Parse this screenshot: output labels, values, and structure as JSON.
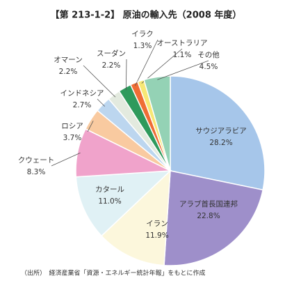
{
  "chart_data": {
    "type": "pie",
    "title": "【第 213-1-2】 原油の輸入先（2008 年度）",
    "categories": [
      "サウジアラビア",
      "アラブ首長国連邦",
      "イラン",
      "カタール",
      "クウェート",
      "ロシア",
      "インドネシア",
      "オマーン",
      "スーダン",
      "イラク",
      "オーストラリア",
      "その他"
    ],
    "values": [
      28.2,
      22.8,
      11.9,
      11.0,
      8.3,
      3.7,
      2.7,
      2.2,
      2.2,
      1.3,
      1.1,
      4.5
    ],
    "value_labels": [
      "28.2%",
      "22.8%",
      "11.9%",
      "11.0%",
      "8.3%",
      "3.7%",
      "2.7%",
      "2.2%",
      "2.2%",
      "1.3%",
      "1.1%",
      "4.5%"
    ],
    "colors": [
      "#a6c6ea",
      "#9e8fca",
      "#fcf7dc",
      "#e0f1f5",
      "#f0a3cb",
      "#f9caa0",
      "#bcd6ef",
      "#e3eadf",
      "#2f9a5c",
      "#ef6d35",
      "#f7e774",
      "#94d2b5"
    ],
    "source": "（出所）　経済産業省「資源・エネルギー統計年報」をもとに作成"
  }
}
